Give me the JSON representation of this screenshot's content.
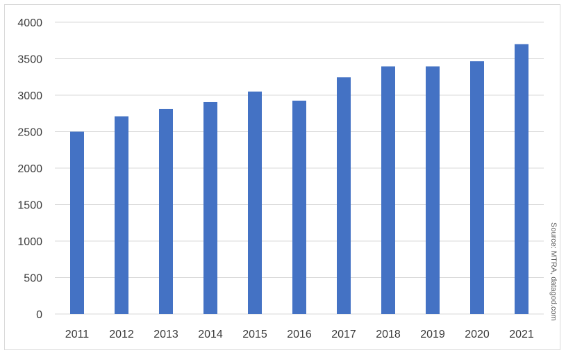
{
  "chart_data": {
    "type": "bar",
    "categories": [
      "2011",
      "2012",
      "2013",
      "2014",
      "2015",
      "2016",
      "2017",
      "2018",
      "2019",
      "2020",
      "2021"
    ],
    "values": [
      2500,
      2710,
      2810,
      2905,
      3050,
      2925,
      3245,
      3395,
      3395,
      3465,
      3700
    ],
    "ylim": [
      0,
      4000
    ],
    "yticks": [
      "0",
      "500",
      "1000",
      "1500",
      "2000",
      "2500",
      "3000",
      "3500",
      "4000"
    ],
    "grid": true,
    "bar_color": "#4472C4",
    "gridline_color": "#d9d9d9"
  },
  "source_note": "Source: MTRA, datagod.com"
}
